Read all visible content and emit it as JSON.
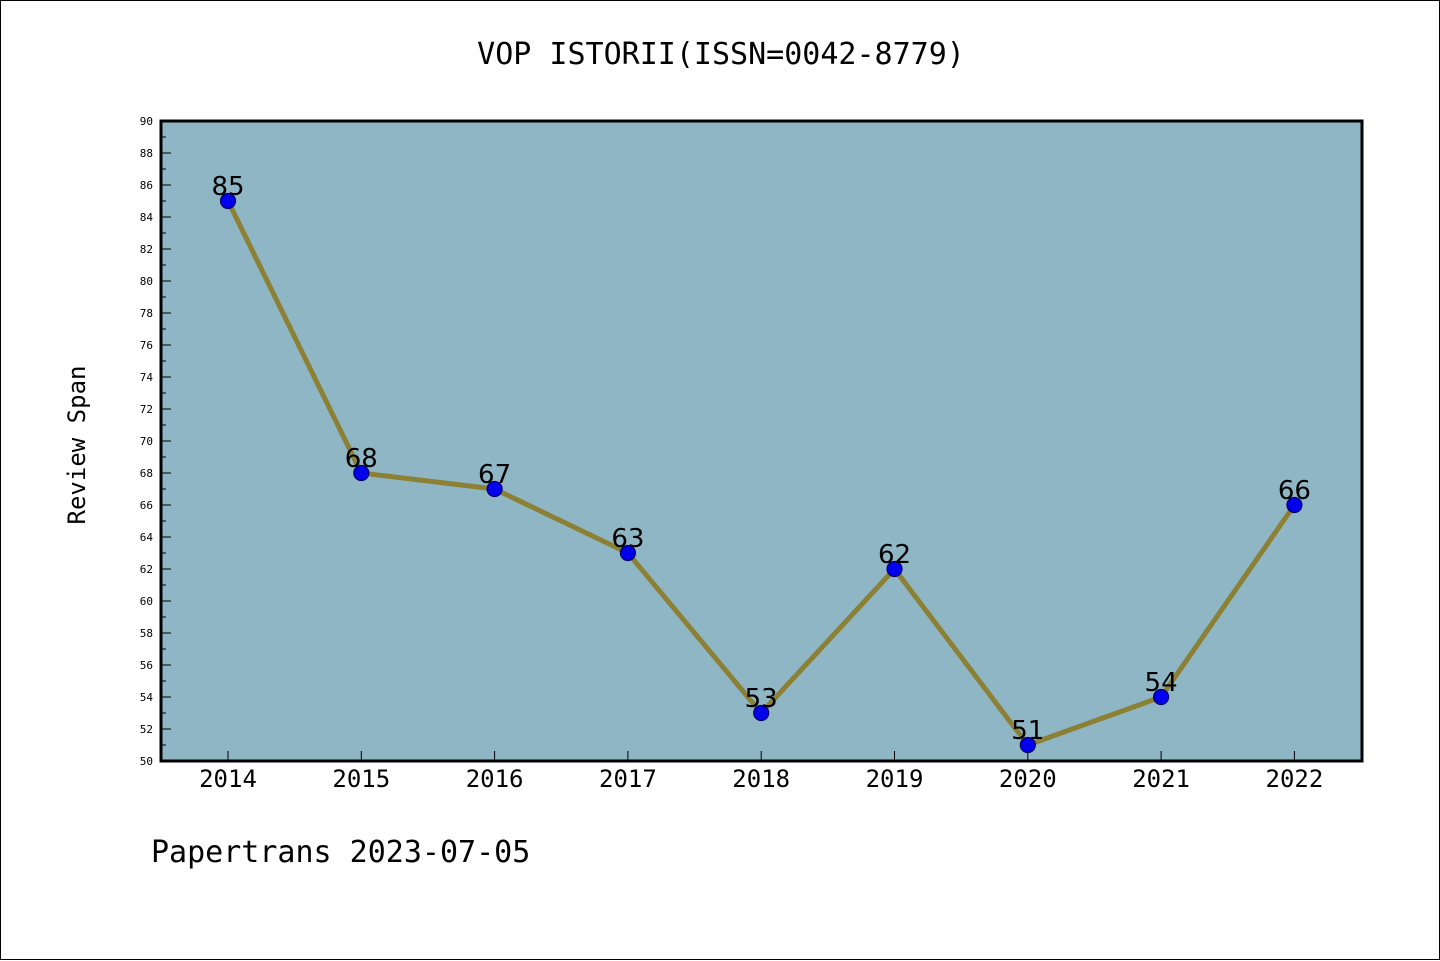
{
  "chart_data": {
    "type": "line",
    "title": "VOP ISTORII(ISSN=0042-8779)",
    "xlabel": "",
    "ylabel": "Review Span",
    "categories": [
      "2014",
      "2015",
      "2016",
      "2017",
      "2018",
      "2019",
      "2020",
      "2021",
      "2022"
    ],
    "series": [
      {
        "values": [
          85,
          68,
          67,
          63,
          53,
          62,
          51,
          54,
          66
        ]
      }
    ],
    "ylim": [
      50,
      90
    ],
    "y_ticks": [
      "50",
      "52",
      "54",
      "56",
      "58",
      "60",
      "62",
      "64",
      "66",
      "68",
      "70",
      "72",
      "74",
      "76",
      "78",
      "80",
      "82",
      "84",
      "86",
      "88",
      "90"
    ],
    "data_labels": true,
    "grid": false,
    "colors": {
      "plot_background": "#8fb6c4",
      "line": "#8c8035",
      "marker": "#0000ee",
      "marker_edge": "#000066"
    }
  },
  "footer": "Papertrans 2023-07-05"
}
